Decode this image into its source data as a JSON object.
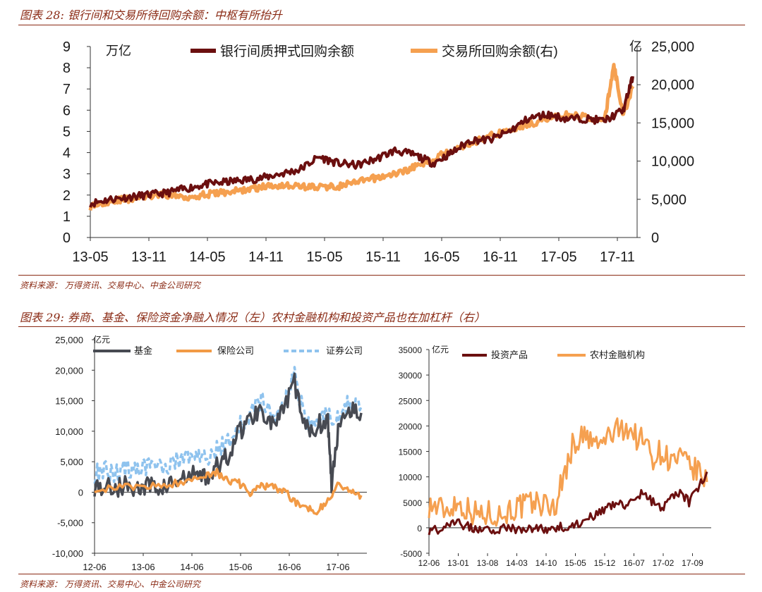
{
  "figure28": {
    "title": "图表 28: 银行间和交易所待回购余额：中枢有所抬升",
    "source": "资料来源：   万得资讯、交易中心、中金公司研究"
  },
  "figure29": {
    "title": "图表 29: 券商、基金、保险资金净融入情况（左）农村金融机构和投资产品也在加杠杆（右）",
    "source": "资料来源：   万得资讯、交易中心、中金公司研究"
  },
  "chart_data": [
    {
      "id": "chart28",
      "type": "line",
      "title": "",
      "y_left_unit": "万亿",
      "y_right_unit": "亿",
      "ylim_left": [
        0,
        9
      ],
      "ylim_right": [
        0,
        25000
      ],
      "y_left_ticks": [
        "0",
        "1",
        "2",
        "3",
        "4",
        "5",
        "6",
        "7",
        "8",
        "9"
      ],
      "y_right_ticks": [
        "0",
        "5,000",
        "10,000",
        "15,000",
        "20,000",
        "25,000"
      ],
      "x_ticks": [
        "13-05",
        "13-11",
        "14-05",
        "14-11",
        "15-05",
        "15-11",
        "16-05",
        "16-11",
        "17-05",
        "17-11"
      ],
      "legend_position": "top",
      "grid": false,
      "series": [
        {
          "name": "银行间质押式回购余额",
          "axis": "left",
          "color": "#6b0f0f",
          "x": [
            0,
            2,
            4,
            6,
            8,
            10,
            12,
            14,
            16,
            18,
            20,
            22,
            24,
            26,
            28,
            30,
            32,
            34,
            36,
            38,
            40,
            42,
            44,
            46,
            48,
            50,
            52,
            54,
            56,
            57
          ],
          "values": [
            1.6,
            1.8,
            1.9,
            2.0,
            2.1,
            2.3,
            2.5,
            2.6,
            2.7,
            2.8,
            3.0,
            3.2,
            3.8,
            3.5,
            3.4,
            3.7,
            4.1,
            3.9,
            3.5,
            4.0,
            4.6,
            4.6,
            5.0,
            5.6,
            5.8,
            5.6,
            5.6,
            5.5,
            6.0,
            7.6
          ]
        },
        {
          "name": "交易所回购余额(右)",
          "axis": "right",
          "color": "#f5a050",
          "x": [
            0,
            2,
            4,
            6,
            8,
            10,
            12,
            14,
            16,
            18,
            20,
            22,
            24,
            26,
            28,
            30,
            32,
            34,
            36,
            38,
            40,
            42,
            44,
            46,
            48,
            50,
            52,
            54,
            55,
            56,
            57
          ],
          "values": [
            4000,
            4800,
            5000,
            5400,
            5600,
            5300,
            5600,
            5900,
            6200,
            6600,
            6900,
            6700,
            6600,
            6700,
            7200,
            7800,
            8300,
            9200,
            10200,
            11600,
            12300,
            13300,
            14200,
            14800,
            15600,
            16000,
            15800,
            15200,
            22500,
            16000,
            19800
          ]
        }
      ]
    },
    {
      "id": "chart29_left",
      "type": "line",
      "title": "",
      "y_unit": "亿元",
      "ylim": [
        -10000,
        25000
      ],
      "y_ticks": [
        "-10,000",
        "-5,000",
        "0",
        "5,000",
        "10,000",
        "15,000",
        "20,000",
        "25,000"
      ],
      "x_ticks": [
        "12-06",
        "13-06",
        "14-06",
        "15-06",
        "16-06",
        "17-06"
      ],
      "legend_position": "top",
      "grid": false,
      "series": [
        {
          "name": "基金",
          "color": "#474a52",
          "x": [
            0,
            3,
            6,
            9,
            12,
            15,
            18,
            21,
            24,
            27,
            30,
            33,
            36,
            39,
            42,
            45,
            48,
            51,
            54,
            57,
            60,
            63,
            64,
            66,
            69,
            72
          ],
          "values": [
            1000,
            900,
            800,
            1200,
            500,
            1000,
            700,
            1500,
            2000,
            3000,
            2500,
            4000,
            6000,
            10000,
            12000,
            14000,
            11000,
            13000,
            18000,
            10000,
            11000,
            12000,
            800,
            12000,
            14000,
            13000
          ]
        },
        {
          "name": "保险公司",
          "color": "#f29a45",
          "x": [
            0,
            6,
            12,
            18,
            24,
            30,
            33,
            36,
            39,
            42,
            45,
            48,
            51,
            54,
            57,
            60,
            63,
            66,
            69,
            72
          ],
          "values": [
            600,
            700,
            900,
            1200,
            1600,
            3000,
            3200,
            2000,
            1500,
            -400,
            1200,
            800,
            300,
            -1500,
            -2500,
            -3000,
            -1500,
            1500,
            0,
            -500
          ]
        },
        {
          "name": "证券公司",
          "color": "#8fc3ee",
          "dashed": true,
          "x": [
            0,
            3,
            6,
            9,
            12,
            15,
            18,
            21,
            24,
            27,
            30,
            33,
            36,
            39,
            42,
            45,
            48,
            51,
            54,
            57,
            60,
            63,
            66,
            69,
            72
          ],
          "values": [
            3000,
            3500,
            3200,
            4000,
            3500,
            4500,
            4000,
            5000,
            5500,
            6000,
            5500,
            7000,
            8000,
            11000,
            13000,
            15000,
            12000,
            14000,
            19500,
            11000,
            12000,
            13000,
            12000,
            15000,
            14000
          ]
        }
      ]
    },
    {
      "id": "chart29_right",
      "type": "line",
      "title": "",
      "y_unit": "亿元",
      "ylim": [
        -5000,
        35000
      ],
      "y_ticks": [
        "-5000",
        "0",
        "5000",
        "10000",
        "15000",
        "20000",
        "25000",
        "30000",
        "35000"
      ],
      "x_ticks": [
        "12-06",
        "13-01",
        "13-08",
        "14-03",
        "14-10",
        "15-05",
        "15-12",
        "16-07",
        "17-02",
        "17-09"
      ],
      "legend_position": "top",
      "grid": false,
      "series": [
        {
          "name": "投资产品",
          "color": "#6b0f0f",
          "x": [
            0,
            4,
            8,
            12,
            16,
            20,
            24,
            28,
            32,
            36,
            40,
            44,
            48,
            52,
            56,
            60,
            64,
            68,
            72,
            76,
            80,
            84,
            88,
            92,
            96,
            100,
            104,
            108,
            112,
            116,
            120,
            124
          ],
          "values": [
            -500,
            -300,
            500,
            1000,
            500,
            -200,
            0,
            -300,
            -200,
            0,
            -500,
            -300,
            -200,
            -400,
            0,
            200,
            500,
            1000,
            2000,
            3000,
            4000,
            5000,
            4500,
            6000,
            7000,
            5000,
            4000,
            6000,
            7000,
            5000,
            8000,
            11000
          ]
        },
        {
          "name": "农村金融机构",
          "color": "#f5a050",
          "x": [
            0,
            4,
            8,
            12,
            16,
            20,
            24,
            28,
            32,
            36,
            40,
            44,
            48,
            52,
            56,
            60,
            64,
            68,
            72,
            76,
            80,
            84,
            88,
            92,
            96,
            100,
            104,
            108,
            112,
            116,
            120,
            124
          ],
          "values": [
            4500,
            4000,
            3500,
            5000,
            4000,
            3000,
            2500,
            3000,
            2500,
            3500,
            4000,
            4500,
            5000,
            4500,
            4000,
            10000,
            16000,
            18000,
            17000,
            16000,
            18000,
            19000,
            20000,
            18000,
            17000,
            14000,
            15000,
            13000,
            13500,
            12000,
            11000,
            9000
          ]
        }
      ]
    }
  ]
}
